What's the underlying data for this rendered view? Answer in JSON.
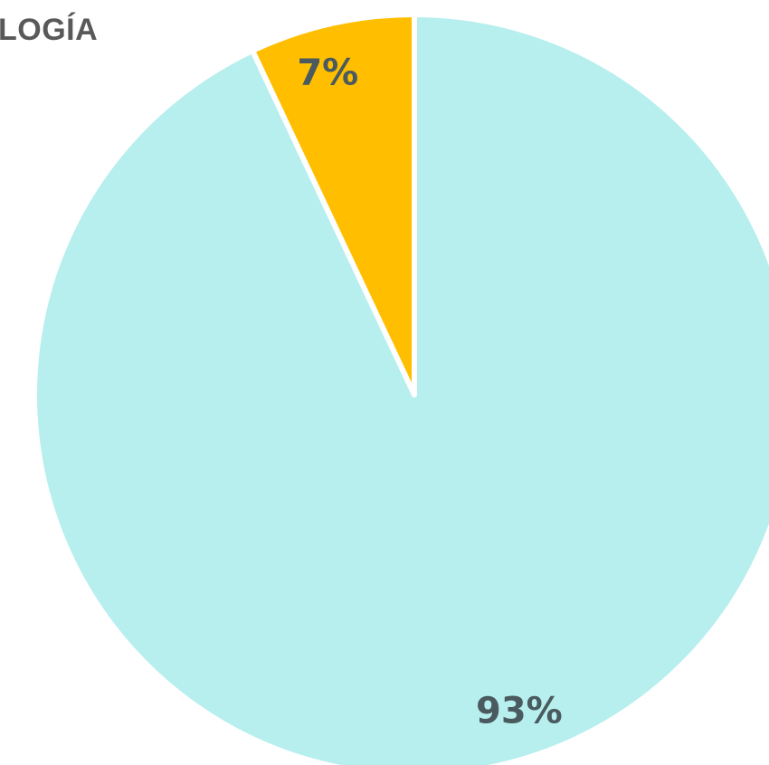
{
  "chart_data": {
    "type": "pie",
    "title": "LOGÍA",
    "slices": [
      {
        "label": "93%",
        "value": 93,
        "color": "#b7eeee"
      },
      {
        "label": "7%",
        "value": 7,
        "color": "#ffbf00"
      }
    ],
    "start_angle_deg": 0,
    "direction": "clockwise",
    "border_color": "#ffffff"
  }
}
